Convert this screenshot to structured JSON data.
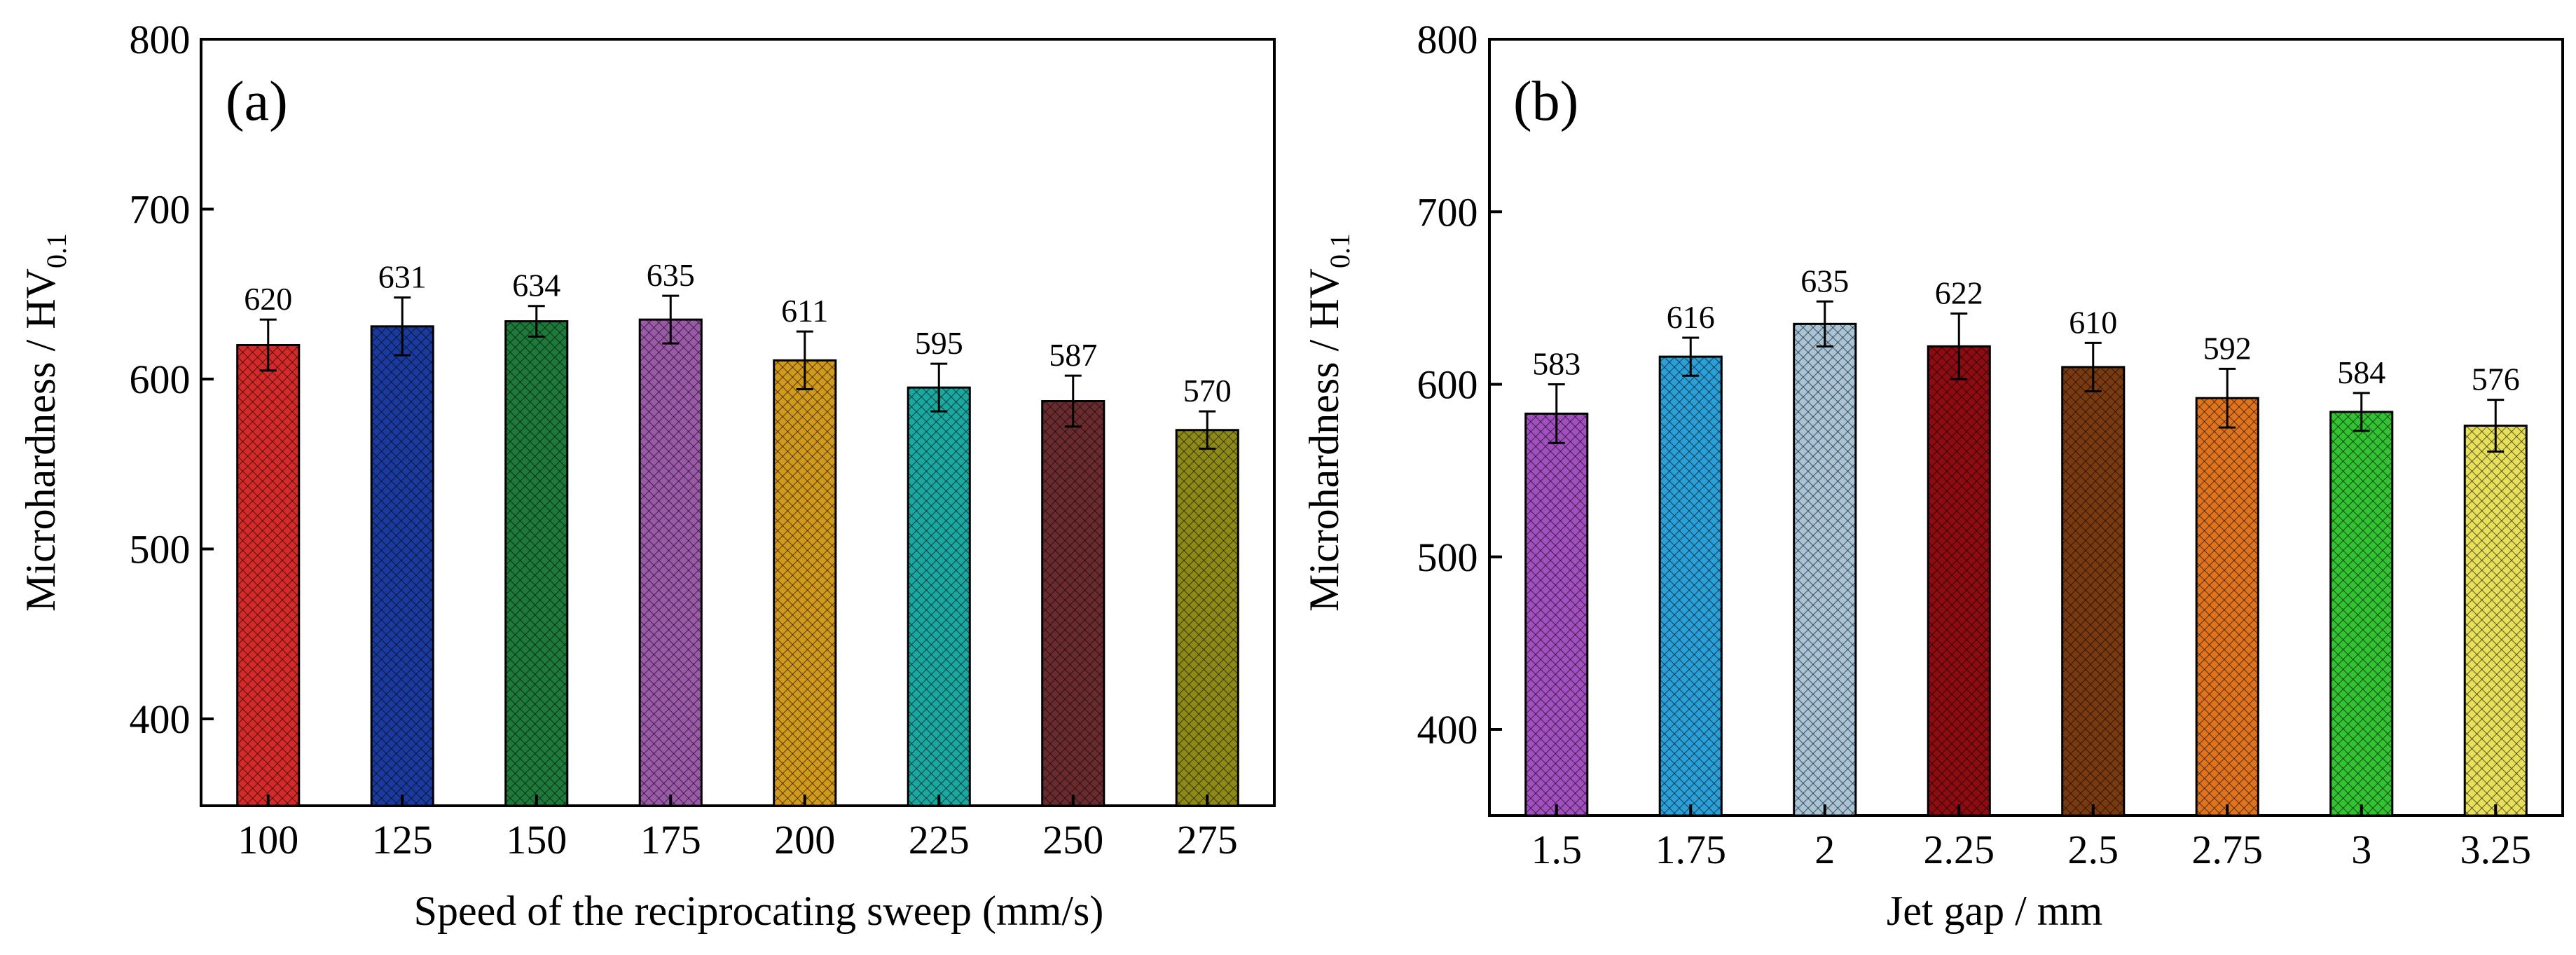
{
  "chart_data": [
    {
      "type": "bar",
      "panel_label": "(a)",
      "xlabel": "Speed of the reciprocating sweep (mm/s)",
      "ylabel_main": "Microhardness / HV",
      "ylabel_sub": "0.1",
      "ylim": [
        350,
        800
      ],
      "yticks": [
        400,
        500,
        600,
        700,
        800
      ],
      "categories": [
        "100",
        "125",
        "150",
        "175",
        "200",
        "225",
        "250",
        "275"
      ],
      "values": [
        620,
        631,
        634,
        635,
        611,
        595,
        587,
        570
      ],
      "errors": [
        15,
        17,
        9,
        14,
        17,
        14,
        15,
        11
      ],
      "value_labels": [
        "620",
        "631",
        "634",
        "635",
        "611",
        "595",
        "587",
        "570"
      ],
      "colors": [
        "#d42a2a",
        "#1a3a9e",
        "#1d7a3a",
        "#9a5aa8",
        "#d19a1c",
        "#1aa8a0",
        "#6a2b2e",
        "#8e8a18"
      ],
      "grid": false
    },
    {
      "type": "bar",
      "panel_label": "(b)",
      "xlabel": "Jet gap / mm",
      "ylabel_main": "Microhardness / HV",
      "ylabel_sub": "0.1",
      "ylim": [
        350,
        800
      ],
      "yticks": [
        400,
        500,
        600,
        700,
        800
      ],
      "categories": [
        "1.5",
        "1.75",
        "2",
        "2.25",
        "2.5",
        "2.75",
        "3",
        "3.25"
      ],
      "values": [
        583,
        616,
        635,
        622,
        610,
        592,
        584,
        576
      ],
      "errors": [
        17,
        11,
        13,
        19,
        14,
        17,
        11,
        15
      ],
      "value_labels": [
        "583",
        "616",
        "635",
        "622",
        "610",
        "592",
        "584",
        "576"
      ],
      "colors": [
        "#a24fbf",
        "#2a9fd8",
        "#a8c4d6",
        "#8c0c12",
        "#7a3a10",
        "#e0741e",
        "#32c232",
        "#e8e05a"
      ],
      "grid": false
    }
  ]
}
